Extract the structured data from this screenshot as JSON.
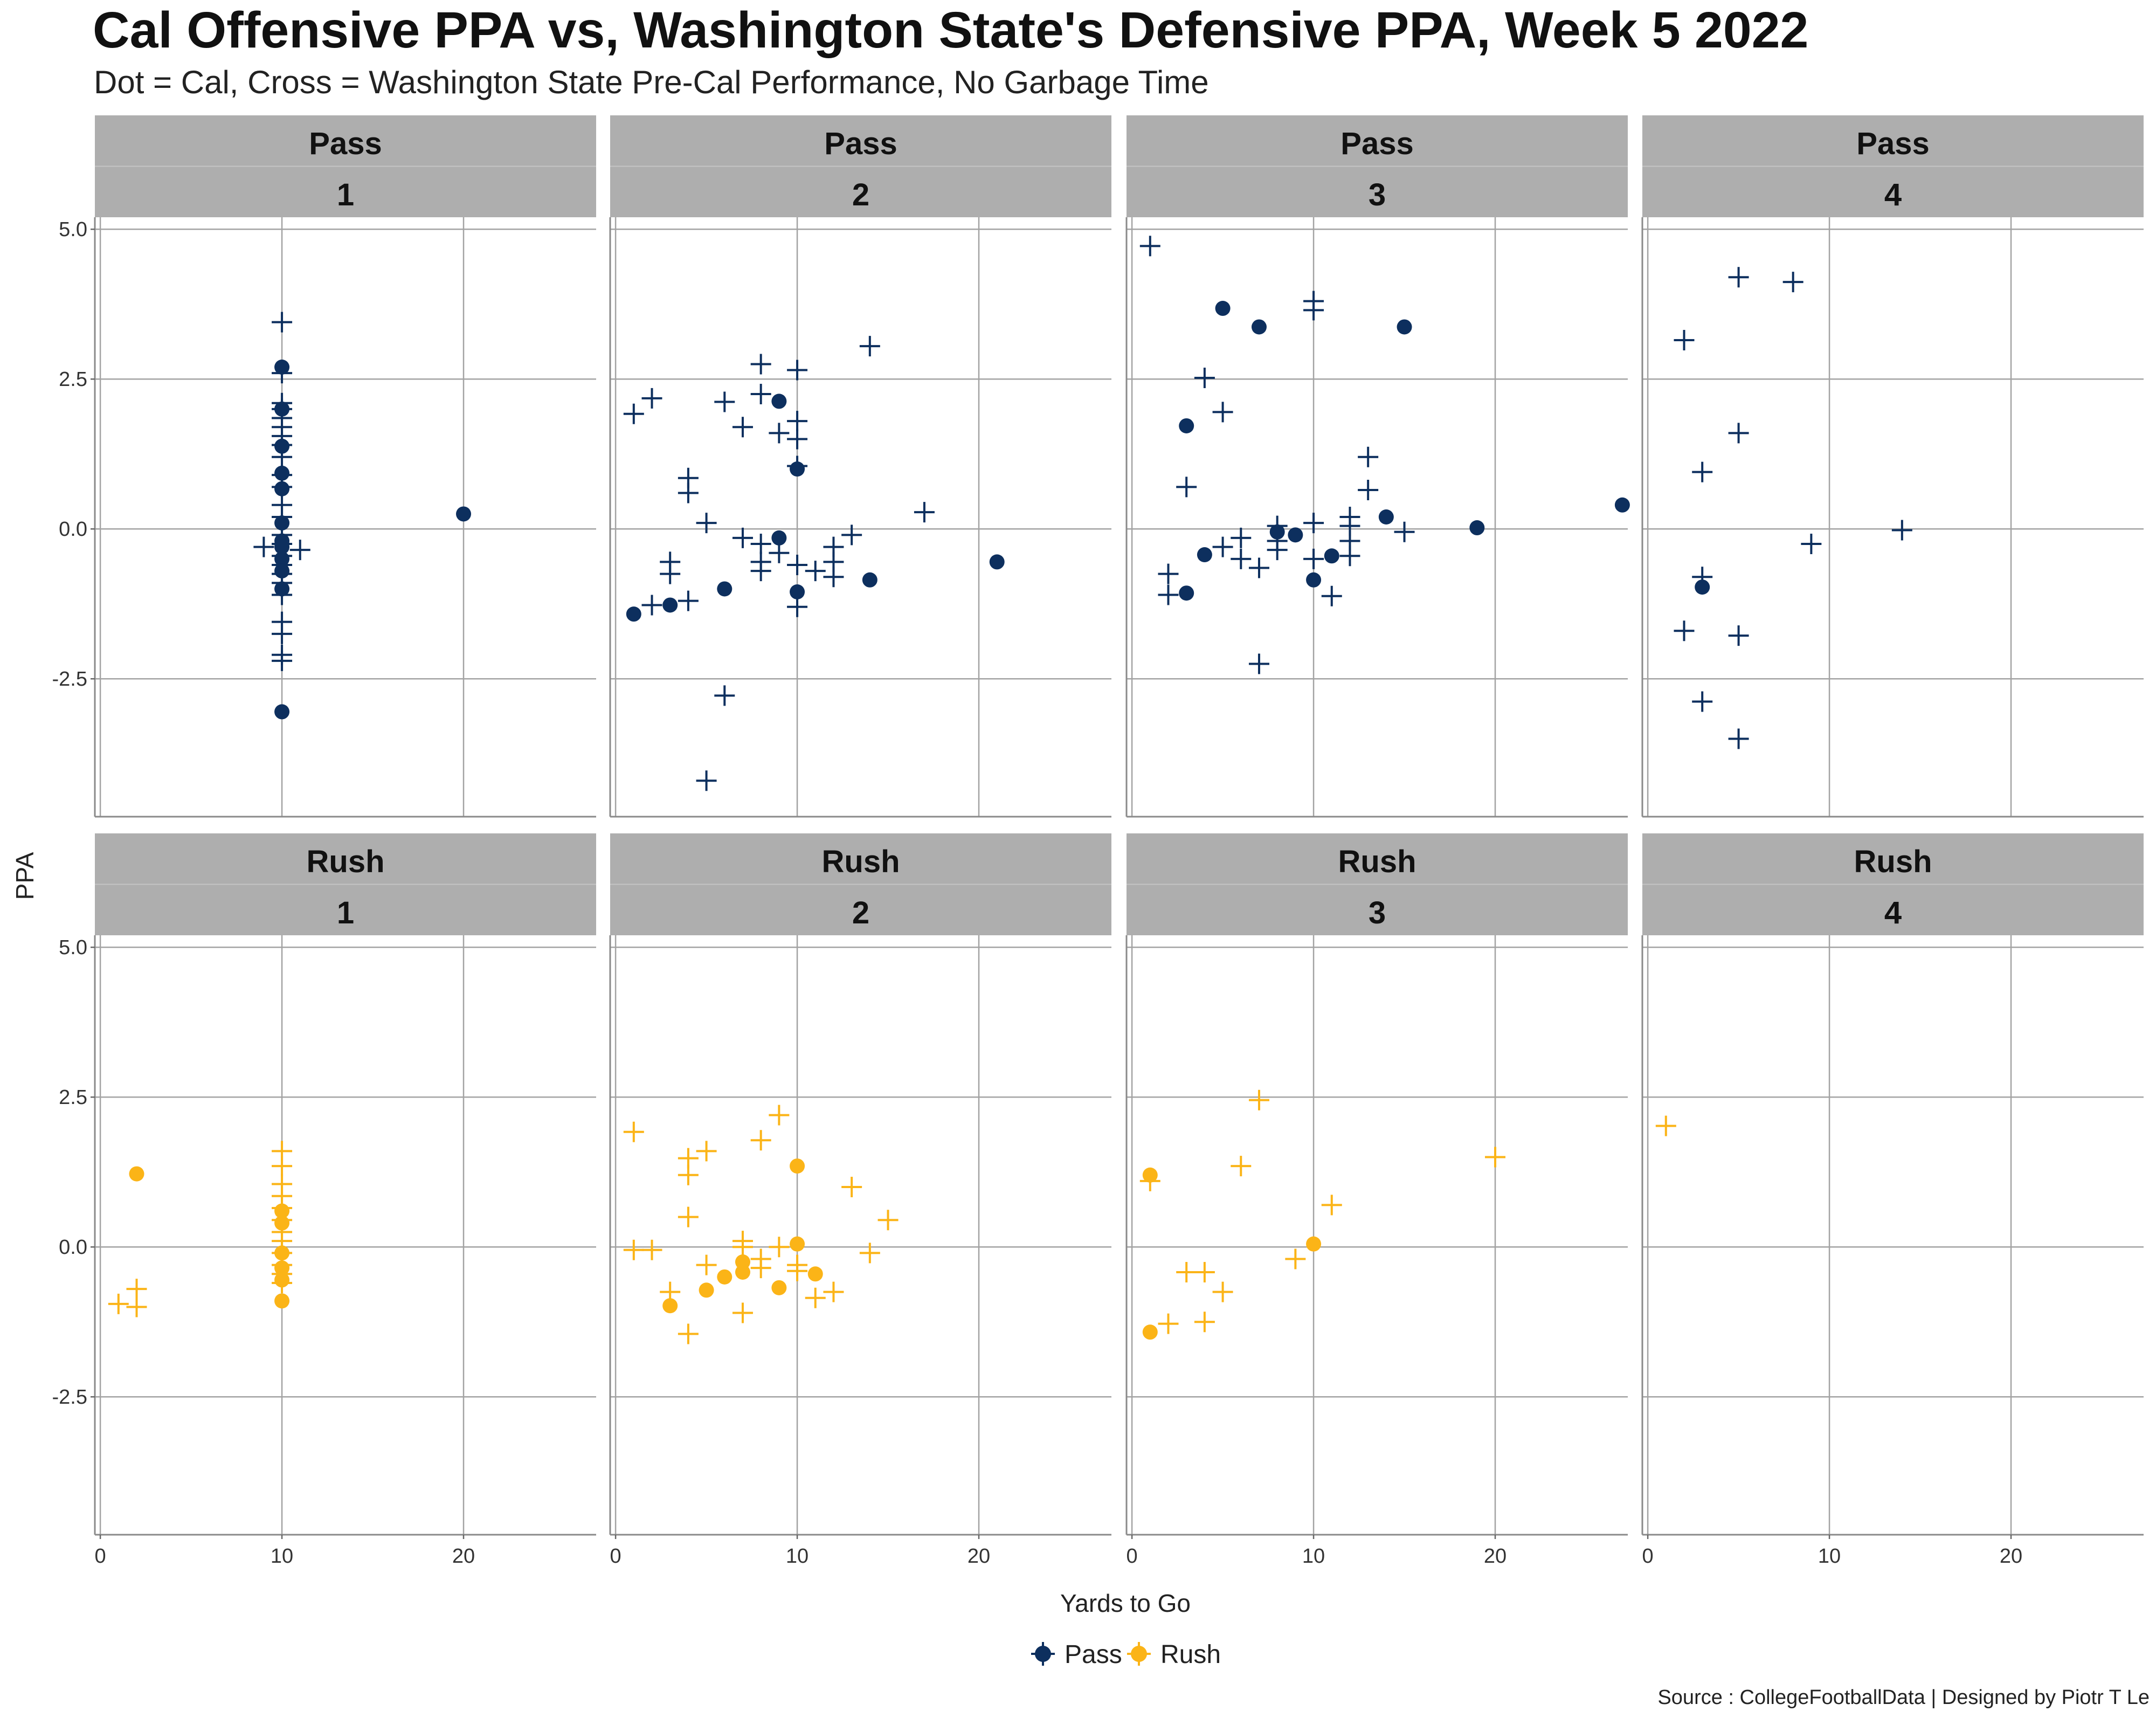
{
  "chart_data": {
    "type": "scatter",
    "title": "Cal Offensive PPA vs, Washington State's Defensive PPA, Week 5 2022",
    "subtitle": "Dot = Cal, Cross = Washington State Pre-Cal Performance, No Garbage Time",
    "xlabel": "Yards to Go",
    "ylabel": "PPA",
    "caption": "Source : CollegeFootballData | Designed by Piotr T Le",
    "xlim": [
      -0.3,
      27.3
    ],
    "ylim": [
      -4.8,
      5.2
    ],
    "x_ticks": [
      0,
      10,
      20
    ],
    "y_ticks": [
      5.0,
      2.5,
      0.0,
      -2.5
    ],
    "y_tick_labels": [
      "5.0",
      "2.5",
      "0.0",
      "-2.5"
    ],
    "colors": {
      "Pass": "#0d2f5e",
      "Rush": "#fbb417"
    },
    "legend": {
      "position": "bottom",
      "entries": [
        "Pass",
        "Rush"
      ]
    },
    "facet_rows": [
      "Pass",
      "Rush"
    ],
    "facet_cols": [
      "1",
      "2",
      "3",
      "4"
    ],
    "panels": [
      {
        "play_type": "Pass",
        "down": "1",
        "cal": [
          [
            10,
            2.7
          ],
          [
            10,
            2.0
          ],
          [
            10,
            1.38
          ],
          [
            10,
            0.93
          ],
          [
            10,
            0.67
          ],
          [
            10,
            0.1
          ],
          [
            10,
            -0.2
          ],
          [
            10,
            -0.3
          ],
          [
            10,
            -0.5
          ],
          [
            10,
            -0.7
          ],
          [
            10,
            -1.0
          ],
          [
            10,
            -3.05
          ],
          [
            20,
            0.25
          ]
        ],
        "opp": [
          [
            10,
            3.45
          ],
          [
            10,
            2.6
          ],
          [
            10,
            2.1
          ],
          [
            10,
            2.0
          ],
          [
            10,
            1.85
          ],
          [
            10,
            1.7
          ],
          [
            10,
            1.55
          ],
          [
            10,
            1.4
          ],
          [
            10,
            1.2
          ],
          [
            10,
            0.9
          ],
          [
            10,
            0.7
          ],
          [
            10,
            0.4
          ],
          [
            10,
            0.2
          ],
          [
            10,
            -0.1
          ],
          [
            10,
            -0.25
          ],
          [
            10,
            -0.45
          ],
          [
            10,
            -0.6
          ],
          [
            10,
            -0.75
          ],
          [
            10,
            -0.9
          ],
          [
            10,
            -1.1
          ],
          [
            10,
            -1.55
          ],
          [
            10,
            -1.75
          ],
          [
            10,
            -2.1
          ],
          [
            10,
            -2.2
          ],
          [
            9,
            -0.3
          ],
          [
            11,
            -0.35
          ]
        ]
      },
      {
        "play_type": "Pass",
        "down": "2",
        "cal": [
          [
            1,
            -1.42
          ],
          [
            3,
            -1.27
          ],
          [
            6,
            -1.0
          ],
          [
            9,
            2.13
          ],
          [
            9,
            -0.15
          ],
          [
            10,
            1.0
          ],
          [
            10,
            -1.05
          ],
          [
            14,
            -0.85
          ],
          [
            21,
            -0.55
          ]
        ],
        "opp": [
          [
            1,
            1.92
          ],
          [
            2,
            2.18
          ],
          [
            2,
            -1.27
          ],
          [
            3,
            -0.55
          ],
          [
            3,
            -0.75
          ],
          [
            4,
            0.85
          ],
          [
            4,
            0.6
          ],
          [
            4,
            -1.2
          ],
          [
            5,
            0.1
          ],
          [
            5,
            -4.2
          ],
          [
            6,
            2.12
          ],
          [
            6,
            -2.78
          ],
          [
            7,
            1.7
          ],
          [
            7,
            -0.15
          ],
          [
            8,
            2.75
          ],
          [
            8,
            2.25
          ],
          [
            8,
            -0.25
          ],
          [
            8,
            -0.55
          ],
          [
            8,
            -0.7
          ],
          [
            9,
            1.6
          ],
          [
            9,
            -0.4
          ],
          [
            10,
            2.65
          ],
          [
            10,
            1.8
          ],
          [
            10,
            1.5
          ],
          [
            10,
            1.05
          ],
          [
            10,
            -0.6
          ],
          [
            10,
            -1.3
          ],
          [
            11,
            -0.7
          ],
          [
            12,
            -0.3
          ],
          [
            12,
            -0.55
          ],
          [
            12,
            -0.8
          ],
          [
            13,
            -0.1
          ],
          [
            14,
            3.05
          ],
          [
            17,
            0.28
          ]
        ]
      },
      {
        "play_type": "Pass",
        "down": "3",
        "cal": [
          [
            3,
            1.72
          ],
          [
            3,
            -1.07
          ],
          [
            4,
            -0.43
          ],
          [
            5,
            3.68
          ],
          [
            7,
            3.37
          ],
          [
            8,
            -0.05
          ],
          [
            9,
            -0.1
          ],
          [
            10,
            -0.85
          ],
          [
            11,
            -0.45
          ],
          [
            14,
            0.2
          ],
          [
            15,
            3.37
          ],
          [
            19,
            0.02
          ],
          [
            27,
            0.4
          ]
        ],
        "opp": [
          [
            1,
            4.72
          ],
          [
            2,
            -0.75
          ],
          [
            2,
            -1.1
          ],
          [
            3,
            0.7
          ],
          [
            4,
            2.52
          ],
          [
            5,
            1.95
          ],
          [
            5,
            -0.3
          ],
          [
            6,
            -0.15
          ],
          [
            6,
            -0.5
          ],
          [
            7,
            -0.65
          ],
          [
            7,
            -2.25
          ],
          [
            8,
            0.05
          ],
          [
            8,
            -0.2
          ],
          [
            8,
            -0.35
          ],
          [
            10,
            3.8
          ],
          [
            10,
            3.65
          ],
          [
            10,
            0.1
          ],
          [
            10,
            -0.5
          ],
          [
            11,
            -1.12
          ],
          [
            12,
            0.2
          ],
          [
            12,
            0.05
          ],
          [
            12,
            -0.2
          ],
          [
            12,
            -0.45
          ],
          [
            13,
            1.2
          ],
          [
            13,
            0.65
          ],
          [
            15,
            -0.05
          ]
        ]
      },
      {
        "play_type": "Pass",
        "down": "4",
        "cal": [
          [
            3,
            -0.97
          ]
        ],
        "opp": [
          [
            2,
            3.15
          ],
          [
            2,
            -1.7
          ],
          [
            3,
            0.95
          ],
          [
            3,
            -0.8
          ],
          [
            3,
            -2.88
          ],
          [
            5,
            4.2
          ],
          [
            5,
            1.6
          ],
          [
            5,
            -1.78
          ],
          [
            5,
            -3.5
          ],
          [
            8,
            4.12
          ],
          [
            9,
            -0.25
          ],
          [
            14,
            -0.02
          ]
        ]
      },
      {
        "play_type": "Rush",
        "down": "1",
        "cal": [
          [
            2,
            1.22
          ],
          [
            10,
            0.6
          ],
          [
            10,
            0.4
          ],
          [
            10,
            -0.1
          ],
          [
            10,
            -0.35
          ],
          [
            10,
            -0.55
          ],
          [
            10,
            -0.9
          ]
        ],
        "opp": [
          [
            1,
            -0.95
          ],
          [
            2,
            -0.7
          ],
          [
            2,
            -1.0
          ],
          [
            10,
            1.6
          ],
          [
            10,
            1.35
          ],
          [
            10,
            1.05
          ],
          [
            10,
            0.85
          ],
          [
            10,
            0.65
          ],
          [
            10,
            0.45
          ],
          [
            10,
            0.25
          ],
          [
            10,
            0.1
          ],
          [
            10,
            -0.1
          ],
          [
            10,
            -0.3
          ],
          [
            10,
            -0.45
          ],
          [
            10,
            -0.6
          ]
        ]
      },
      {
        "play_type": "Rush",
        "down": "2",
        "cal": [
          [
            3,
            -0.98
          ],
          [
            5,
            -0.72
          ],
          [
            6,
            -0.5
          ],
          [
            7,
            -0.25
          ],
          [
            7,
            -0.42
          ],
          [
            9,
            -0.68
          ],
          [
            10,
            1.35
          ],
          [
            10,
            0.05
          ],
          [
            11,
            -0.45
          ]
        ],
        "opp": [
          [
            1,
            1.92
          ],
          [
            1,
            -0.05
          ],
          [
            2,
            -0.05
          ],
          [
            3,
            -0.75
          ],
          [
            4,
            1.48
          ],
          [
            4,
            1.2
          ],
          [
            4,
            0.5
          ],
          [
            4,
            -1.45
          ],
          [
            5,
            1.6
          ],
          [
            5,
            -0.3
          ],
          [
            7,
            0.1
          ],
          [
            7,
            0.0
          ],
          [
            7,
            -1.1
          ],
          [
            8,
            1.78
          ],
          [
            8,
            -0.2
          ],
          [
            8,
            -0.35
          ],
          [
            9,
            2.2
          ],
          [
            9,
            0.0
          ],
          [
            10,
            -0.3
          ],
          [
            10,
            -0.4
          ],
          [
            11,
            -0.85
          ],
          [
            12,
            -0.75
          ],
          [
            13,
            1.0
          ],
          [
            14,
            -0.1
          ],
          [
            15,
            0.45
          ]
        ]
      },
      {
        "play_type": "Rush",
        "down": "3",
        "cal": [
          [
            1,
            1.2
          ],
          [
            1,
            -1.42
          ],
          [
            10,
            0.05
          ]
        ],
        "opp": [
          [
            1,
            1.1
          ],
          [
            2,
            -1.28
          ],
          [
            3,
            -0.42
          ],
          [
            4,
            -0.42
          ],
          [
            4,
            -1.25
          ],
          [
            5,
            -0.75
          ],
          [
            6,
            1.35
          ],
          [
            7,
            2.45
          ],
          [
            9,
            -0.2
          ],
          [
            11,
            0.7
          ],
          [
            20,
            1.5
          ]
        ]
      },
      {
        "play_type": "Rush",
        "down": "4",
        "cal": [],
        "opp": [
          [
            1,
            2.02
          ]
        ]
      }
    ]
  }
}
